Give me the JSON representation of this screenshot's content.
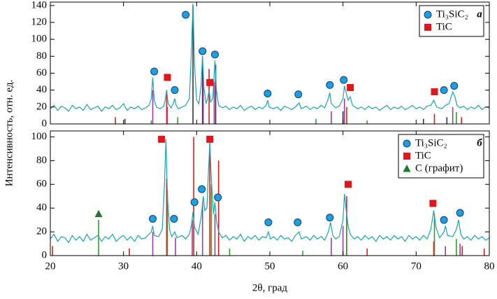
{
  "chart_data": [
    {
      "type": "line",
      "label": "а",
      "ylabel": "Интенсивность, отн. ед.",
      "xlim": [
        20,
        80
      ],
      "ylim": [
        0,
        144
      ],
      "yticks": [
        0,
        20,
        40,
        60,
        80,
        100,
        120,
        140
      ],
      "line_color": "#1aa3b5",
      "x": [
        20,
        20.5,
        21,
        21.5,
        22,
        22.5,
        23,
        23.5,
        24,
        24.5,
        25,
        25.5,
        26,
        26.5,
        27,
        27.5,
        28,
        28.5,
        29,
        29.5,
        30,
        30.5,
        31,
        31.5,
        32,
        32.5,
        33,
        33.5,
        33.8,
        34,
        34.2,
        34.5,
        35,
        35.5,
        35.7,
        35.9,
        36.1,
        36.5,
        36.8,
        37,
        37.2,
        37.5,
        38,
        38.5,
        39,
        39.3,
        39.5,
        39.7,
        40,
        40.3,
        40.6,
        40.8,
        41,
        41.3,
        41.5,
        41.7,
        41.9,
        42.2,
        42.5,
        42.7,
        43,
        43.5,
        44,
        44.5,
        45,
        45.5,
        46,
        46.5,
        47,
        47.5,
        48,
        48.5,
        49,
        49.5,
        49.7,
        49.9,
        50.5,
        51,
        51.5,
        52,
        52.5,
        53,
        53.5,
        54,
        54.3,
        55,
        55.5,
        56,
        56.5,
        57,
        57.5,
        58,
        58.2,
        58.4,
        59,
        59.5,
        60,
        60.2,
        60.4,
        60.7,
        61,
        61.3,
        62,
        62.5,
        63,
        63.5,
        64,
        64.5,
        65,
        65.5,
        66,
        66.5,
        67,
        67.5,
        68,
        68.5,
        69,
        69.5,
        70,
        70.5,
        71,
        71.5,
        72,
        72.4,
        72.8,
        73.5,
        74,
        74.5,
        75,
        75.3,
        75.6,
        76,
        76.5,
        77,
        77.5,
        78,
        78.5,
        79,
        79.5,
        80
      ],
      "values": [
        18,
        22,
        16,
        21,
        19,
        15,
        22,
        18,
        20,
        16,
        23,
        17,
        19,
        21,
        15,
        20,
        18,
        22,
        17,
        19,
        24,
        16,
        20,
        18,
        21,
        17,
        19,
        22,
        30,
        55,
        28,
        20,
        18,
        21,
        28,
        40,
        24,
        19,
        24,
        30,
        22,
        18,
        20,
        22,
        30,
        90,
        142,
        70,
        28,
        24,
        45,
        80,
        42,
        24,
        30,
        40,
        26,
        30,
        75,
        40,
        22,
        19,
        21,
        17,
        20,
        18,
        22,
        16,
        19,
        21,
        17,
        20,
        18,
        22,
        28,
        20,
        18,
        20,
        16,
        21,
        19,
        17,
        20,
        25,
        18,
        21,
        17,
        20,
        18,
        22,
        19,
        30,
        37,
        24,
        19,
        21,
        30,
        45,
        38,
        28,
        32,
        22,
        18,
        20,
        17,
        21,
        18,
        20,
        16,
        19,
        22,
        17,
        20,
        18,
        21,
        17,
        19,
        22,
        18,
        20,
        17,
        21,
        22,
        28,
        20,
        18,
        22,
        24,
        38,
        32,
        22,
        19,
        21,
        17,
        20,
        18,
        22,
        17,
        20,
        19
      ],
      "sticks": [
        {
          "color": "#e41a1c",
          "x": [
            28.9,
            35.9,
            41.7,
            60.5,
            72.5,
            76.2
          ],
          "values": [
            8,
            40,
            65,
            20,
            12,
            8
          ]
        },
        {
          "color": "#333333",
          "x": [
            30.2,
            39.5,
            40.8,
            42.6,
            60.0,
            71.0,
            74.2
          ],
          "values": [
            6,
            140,
            80,
            70,
            15,
            6,
            8
          ]
        },
        {
          "color": "#2ca02c",
          "x": [
            33.8,
            37.4,
            56.3,
            63.3,
            75.5
          ],
          "values": [
            4,
            8,
            6,
            4,
            14
          ]
        },
        {
          "color": "#9b3fa0",
          "x": [
            34.0,
            36.0,
            40.9,
            42.4,
            58.4,
            60.2,
            75.0
          ],
          "values": [
            40,
            20,
            60,
            50,
            15,
            30,
            20
          ]
        }
      ],
      "markers": [
        {
          "name": "Ti₃SiC₂",
          "shape": "circle",
          "color": "#1e9fe0",
          "x": [
            34.2,
            37.0,
            38.5,
            40.8,
            42.5,
            49.7,
            53.9,
            58.2,
            60.1,
            73.8,
            75.2
          ],
          "values": [
            62,
            40,
            129,
            86,
            82,
            36,
            35,
            46,
            52,
            40,
            45
          ]
        },
        {
          "name": "TiC",
          "shape": "square",
          "color": "#e0161b",
          "x": [
            36.0,
            41.8,
            61.0,
            72.5
          ],
          "values": [
            55,
            49,
            43,
            38
          ]
        }
      ]
    },
    {
      "type": "line",
      "label": "б",
      "xlabel": "2θ, град",
      "xlim": [
        20,
        80
      ],
      "ylim": [
        0,
        105
      ],
      "xticks": [
        20,
        30,
        40,
        50,
        60,
        70,
        80
      ],
      "yticks": [
        0,
        20,
        40,
        60,
        80,
        100
      ],
      "line_color": "#1aa3b5",
      "x": [
        20,
        20.5,
        21,
        21.5,
        22,
        22.5,
        23,
        23.5,
        24,
        24.5,
        25,
        25.5,
        26,
        26.5,
        27,
        27.5,
        28,
        28.5,
        29,
        29.5,
        30,
        30.5,
        31,
        31.5,
        32,
        32.5,
        33,
        33.5,
        33.8,
        34,
        34.2,
        34.8,
        35.3,
        35.6,
        35.8,
        36,
        36.3,
        36.6,
        37,
        37.3,
        38,
        38.5,
        39,
        39.3,
        39.5,
        39.7,
        40.2,
        40.6,
        40.9,
        41.1,
        41.4,
        41.6,
        41.8,
        42,
        42.3,
        42.5,
        42.7,
        43,
        43.5,
        44,
        44.5,
        45,
        45.5,
        46,
        46.5,
        47,
        47.5,
        48,
        48.5,
        49,
        49.5,
        49.8,
        50.1,
        50.5,
        51,
        51.5,
        52,
        52.5,
        53,
        53.5,
        54,
        54.3,
        55,
        55.5,
        56,
        56.5,
        57,
        57.5,
        58,
        58.3,
        58.6,
        59,
        59.5,
        60,
        60.2,
        60.4,
        60.7,
        61,
        61.5,
        62,
        62.5,
        63,
        63.5,
        64,
        64.5,
        65,
        65.5,
        66,
        66.5,
        67,
        67.5,
        68,
        68.5,
        69,
        69.5,
        70,
        70.5,
        71,
        71.5,
        72,
        72.4,
        72.7,
        73.2,
        73.8,
        74,
        74.3,
        75,
        75.5,
        75.8,
        76.1,
        76.5,
        77,
        77.5,
        78,
        78.5,
        79,
        79.5,
        80
      ],
      "values": [
        14,
        18,
        12,
        16,
        15,
        11,
        17,
        13,
        16,
        12,
        18,
        13,
        15,
        17,
        12,
        16,
        14,
        18,
        12,
        15,
        17,
        13,
        16,
        12,
        17,
        14,
        15,
        18,
        20,
        25,
        17,
        16,
        22,
        60,
        98,
        50,
        22,
        16,
        20,
        15,
        17,
        14,
        18,
        26,
        37,
        24,
        18,
        32,
        50,
        38,
        40,
        70,
        95,
        65,
        35,
        45,
        30,
        20,
        15,
        17,
        13,
        16,
        14,
        18,
        12,
        16,
        14,
        17,
        13,
        16,
        15,
        20,
        14,
        16,
        13,
        17,
        14,
        15,
        12,
        17,
        20,
        14,
        16,
        13,
        17,
        14,
        16,
        13,
        20,
        28,
        17,
        14,
        16,
        30,
        52,
        40,
        25,
        18,
        14,
        16,
        13,
        17,
        14,
        16,
        12,
        17,
        14,
        16,
        13,
        17,
        14,
        16,
        12,
        17,
        14,
        16,
        13,
        17,
        14,
        22,
        38,
        24,
        15,
        20,
        25,
        17,
        16,
        22,
        30,
        18,
        14,
        16,
        13,
        17,
        14,
        16,
        13,
        15
      ],
      "sticks": [
        {
          "color": "#e41a1c",
          "x": [
            20.3,
            30.8,
            35.9,
            39.6,
            41.8,
            43.0,
            60.5,
            63.3,
            72.4,
            76.3,
            79.3
          ],
          "values": [
            8,
            6,
            65,
            100,
            100,
            80,
            50,
            6,
            12,
            8,
            6
          ]
        },
        {
          "color": "#2ca02c",
          "x": [
            26.6,
            36.0,
            42.0,
            44.5,
            54.5,
            60.5,
            72.5,
            75.5
          ],
          "values": [
            30,
            55,
            60,
            6,
            4,
            30,
            35,
            14
          ]
        },
        {
          "color": "#9b3fa0",
          "x": [
            34.0,
            37.1,
            39.4,
            40.8,
            42.5,
            58.4,
            60.0,
            74.0,
            76.0
          ],
          "values": [
            20,
            15,
            30,
            45,
            35,
            15,
            25,
            8,
            10
          ]
        }
      ],
      "markers": [
        {
          "name": "Ti₃SiC₂",
          "shape": "circle",
          "color": "#1e9fe0",
          "x": [
            34.0,
            36.9,
            39.7,
            40.7,
            42.9,
            49.8,
            53.8,
            58.2,
            73.8,
            76.0
          ],
          "values": [
            31,
            31,
            45,
            56,
            49,
            28,
            28,
            32,
            30,
            36
          ]
        },
        {
          "name": "TiC",
          "shape": "square",
          "color": "#e0161b",
          "x": [
            35.2,
            41.8,
            60.7,
            72.3
          ],
          "values": [
            98,
            98,
            60,
            44
          ]
        },
        {
          "name": "C (графит)",
          "shape": "triangle",
          "color": "#1e7a2e",
          "x": [
            26.6
          ],
          "values": [
            35
          ]
        }
      ]
    }
  ]
}
